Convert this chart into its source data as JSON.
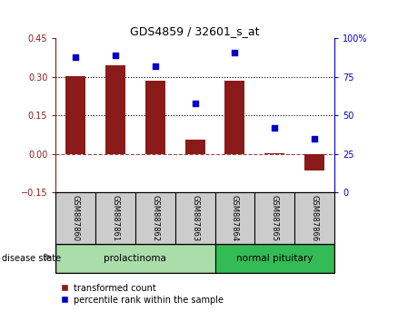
{
  "title": "GDS4859 / 32601_s_at",
  "samples": [
    "GSM887860",
    "GSM887861",
    "GSM887862",
    "GSM887863",
    "GSM887864",
    "GSM887865",
    "GSM887866"
  ],
  "bar_values": [
    0.305,
    0.345,
    0.285,
    0.055,
    0.285,
    0.005,
    -0.065
  ],
  "percentile_values": [
    88,
    89,
    82,
    58,
    91,
    42,
    35
  ],
  "disease_groups": [
    {
      "label": "prolactinoma",
      "indices": [
        0,
        1,
        2,
        3
      ],
      "color": "#aaddaa"
    },
    {
      "label": "normal pituitary",
      "indices": [
        4,
        5,
        6
      ],
      "color": "#33bb55"
    }
  ],
  "bar_color": "#8B1A1A",
  "point_color": "#0000CC",
  "left_ylim": [
    -0.15,
    0.45
  ],
  "right_ylim": [
    0,
    100
  ],
  "left_yticks": [
    -0.15,
    0.0,
    0.15,
    0.3,
    0.45
  ],
  "right_yticks": [
    0,
    25,
    50,
    75,
    100
  ],
  "right_yticklabels": [
    "0",
    "25",
    "50",
    "75",
    "100%"
  ],
  "hline_values": [
    0.15,
    0.3
  ],
  "background_color": "#ffffff",
  "legend_items": [
    "transformed count",
    "percentile rank within the sample"
  ],
  "disease_state_label": "disease state",
  "label_bg": "#cccccc"
}
